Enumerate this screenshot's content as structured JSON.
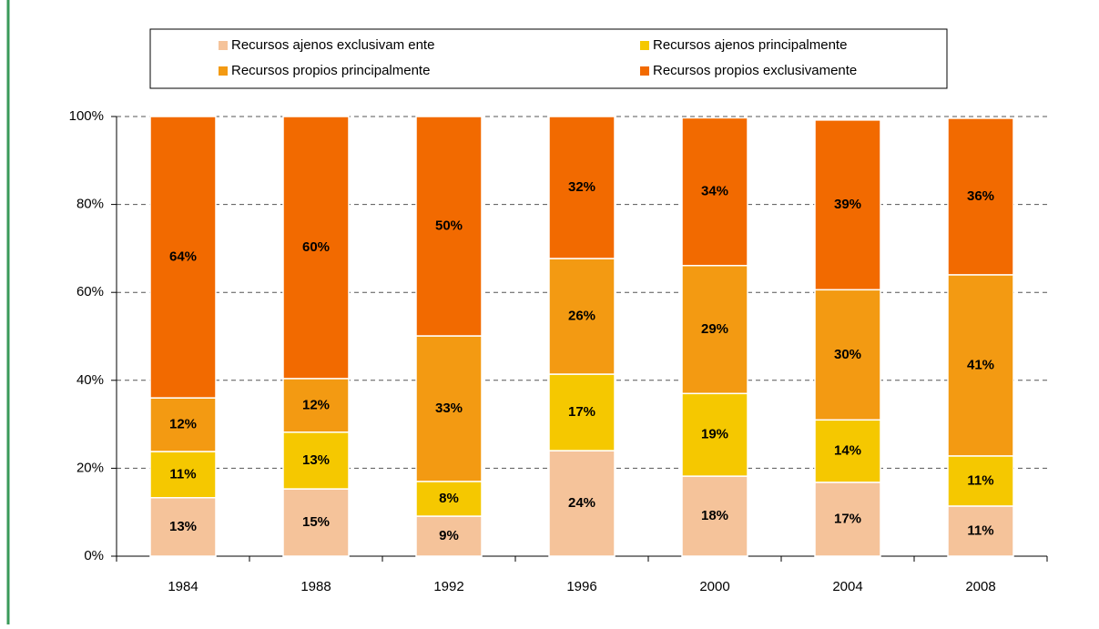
{
  "chart_data": {
    "type": "stacked_bar",
    "categories": [
      "1984",
      "1988",
      "1992",
      "1996",
      "2000",
      "2004",
      "2008"
    ],
    "series": [
      {
        "name": "Recursos ajenos exclusivam ente",
        "color": "#f5c39a",
        "values": [
          13.3,
          15.3,
          9.1,
          24.0,
          18.2,
          16.8,
          11.4
        ],
        "value_labels": [
          "13%",
          "15%",
          "9%",
          "24%",
          "18%",
          "17%",
          "11%"
        ]
      },
      {
        "name": "Recursos ajenos principalmente",
        "color": "#f5c800",
        "values": [
          10.5,
          12.9,
          7.9,
          17.4,
          18.8,
          14.2,
          11.4
        ],
        "value_labels": [
          "11%",
          "13%",
          "8%",
          "17%",
          "19%",
          "14%",
          "11%"
        ]
      },
      {
        "name": "Recursos propios principalmente",
        "color": "#f39a12",
        "values": [
          12.2,
          12.2,
          33.1,
          26.3,
          29.1,
          29.6,
          41.2
        ],
        "value_labels": [
          "12%",
          "12%",
          "33%",
          "26%",
          "29%",
          "30%",
          "41%"
        ]
      },
      {
        "name": "Recursos propios exclusivamente",
        "color": "#f26a00",
        "values": [
          64.0,
          59.6,
          49.9,
          32.3,
          33.6,
          38.6,
          35.6
        ],
        "value_labels": [
          "64%",
          "60%",
          "50%",
          "32%",
          "34%",
          "39%",
          "36%"
        ]
      }
    ],
    "ylim": [
      0,
      100
    ],
    "yticks": [
      {
        "value": 0,
        "label": "0%"
      },
      {
        "value": 20,
        "label": "20%"
      },
      {
        "value": 40,
        "label": "40%"
      },
      {
        "value": 60,
        "label": "60%"
      },
      {
        "value": 80,
        "label": "80%"
      },
      {
        "value": 100,
        "label": "100%"
      }
    ],
    "grid": true
  }
}
